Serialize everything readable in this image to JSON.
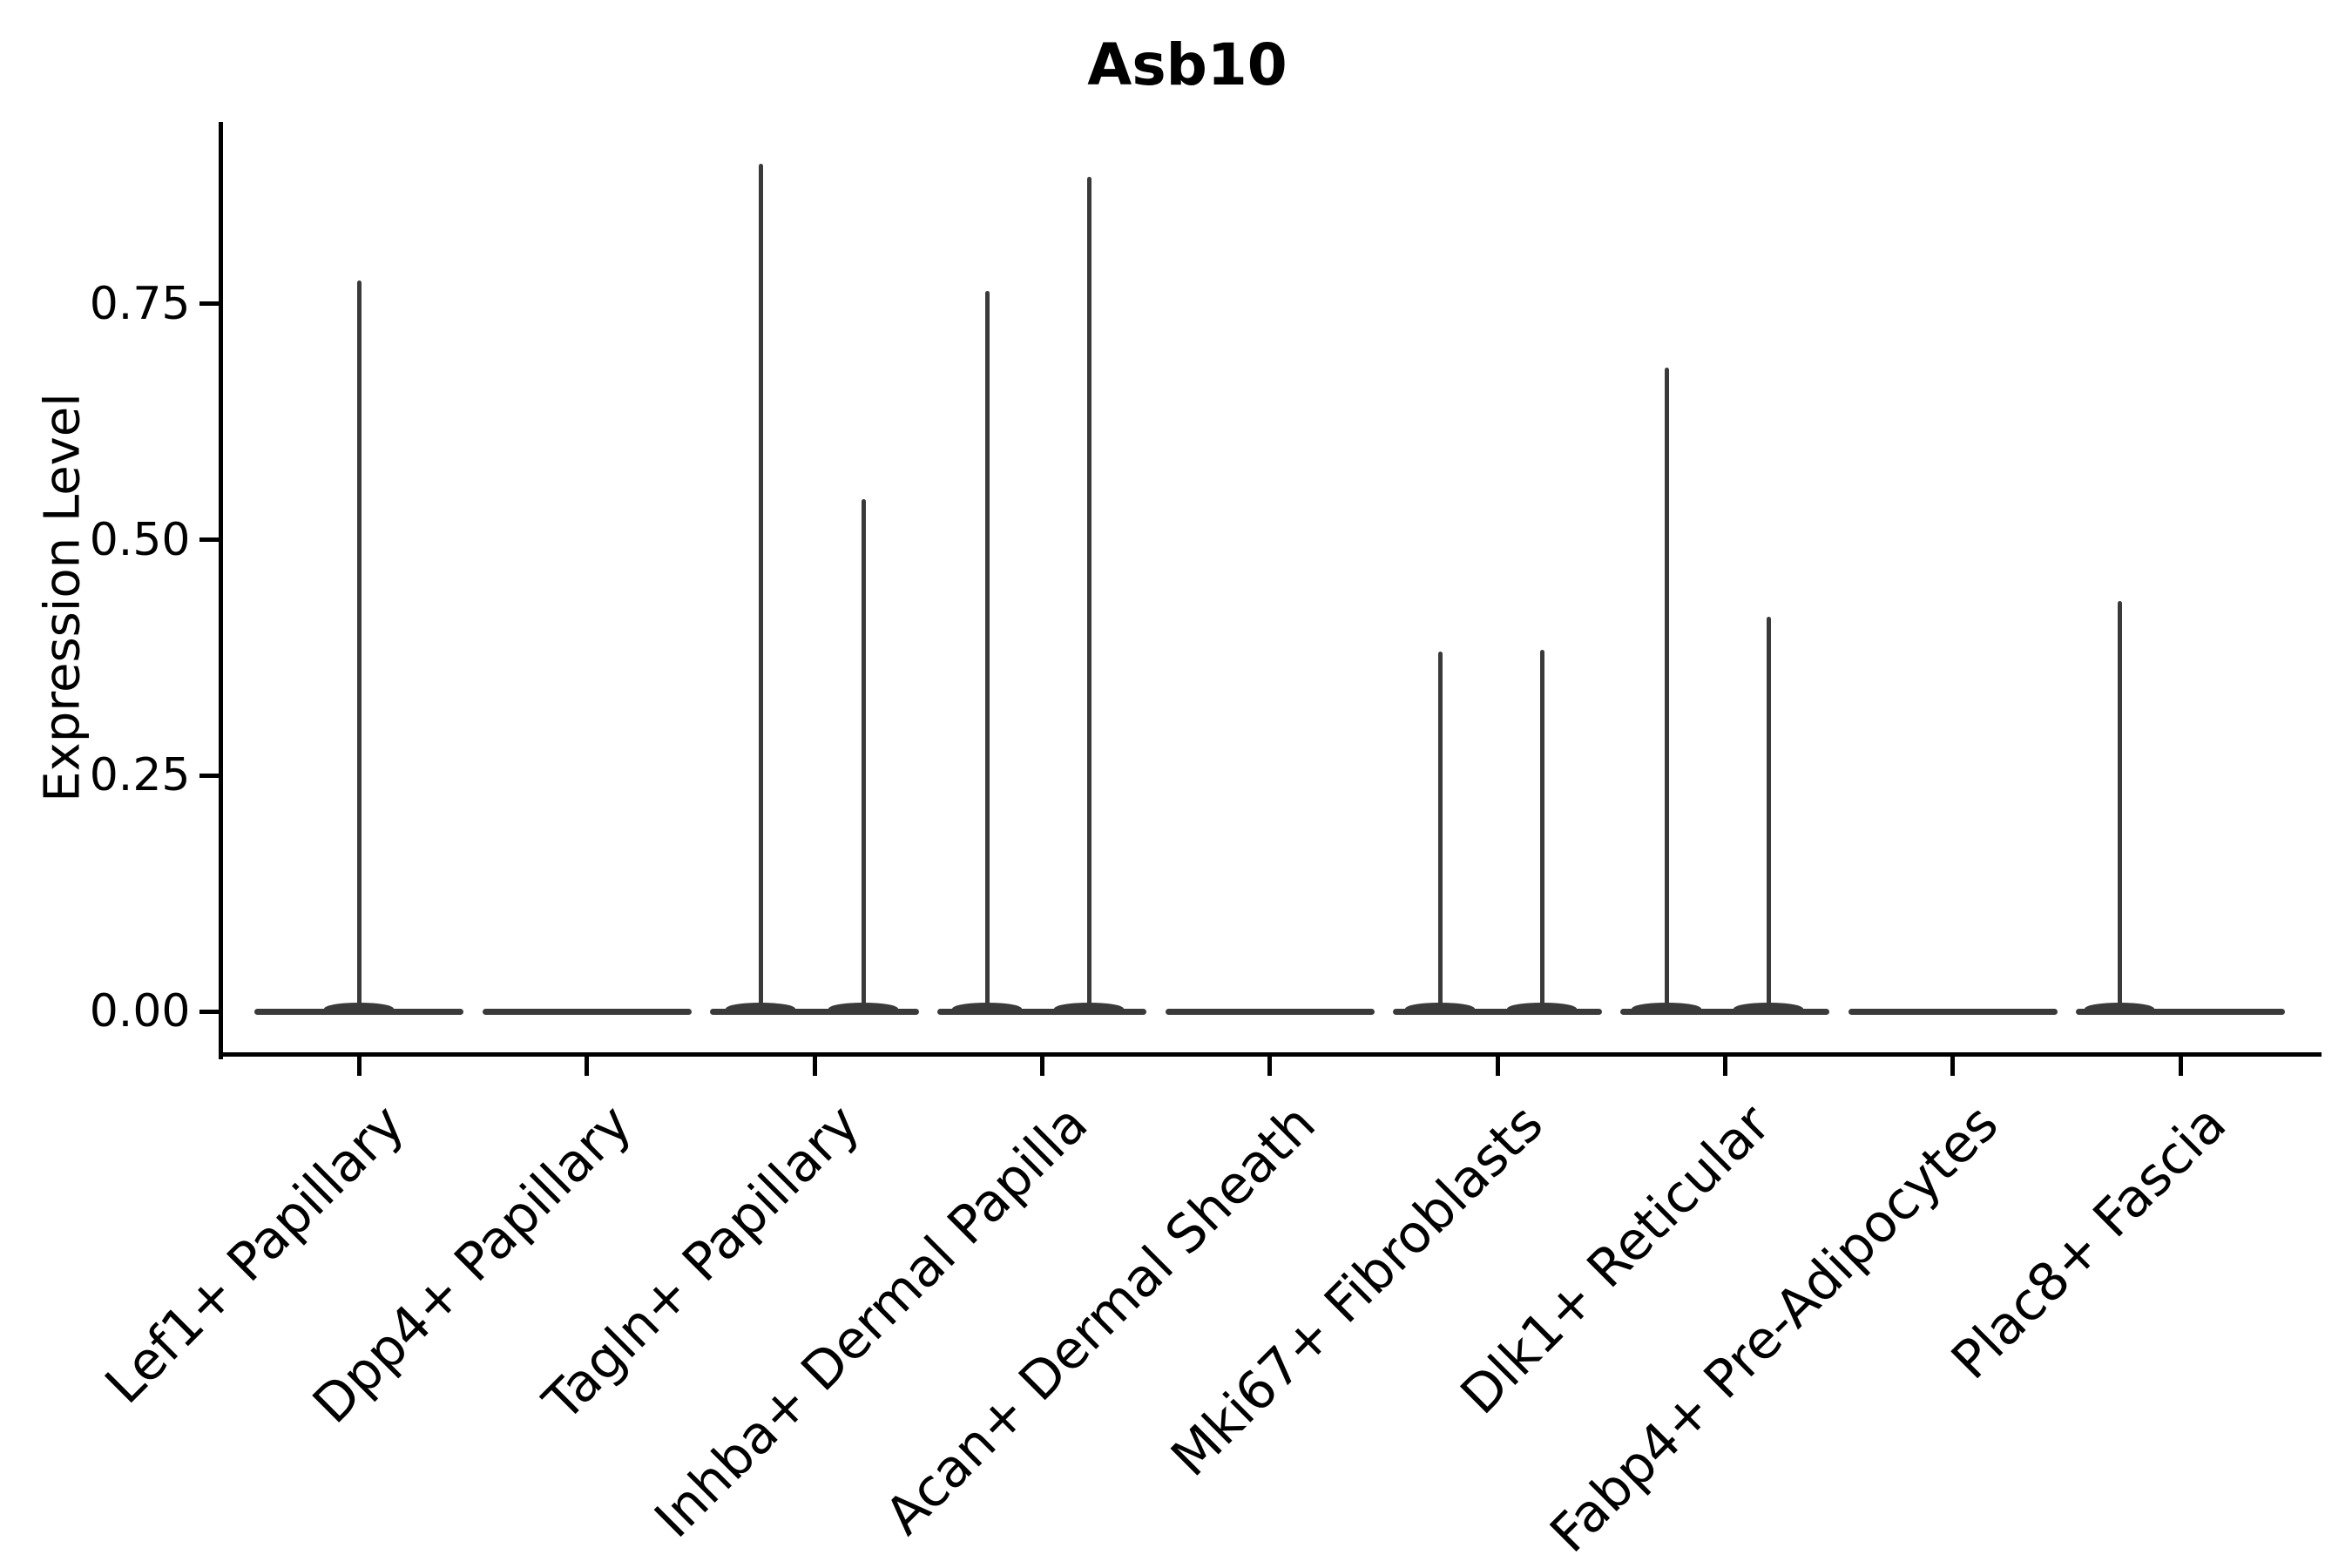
{
  "figure": {
    "title": "Asb10"
  },
  "y_axis": {
    "label": "Expression Level"
  },
  "chart_data": {
    "type": "violin",
    "title": "Asb10",
    "xlabel": "",
    "ylabel": "Expression Level",
    "legend": "none",
    "grid": false,
    "ylim": [
      -0.045,
      0.943
    ],
    "ytick_values": [
      0.0,
      0.25,
      0.5,
      0.75
    ],
    "ytick_labels": [
      "0.00",
      "0.25",
      "0.50",
      "0.75"
    ],
    "categories": [
      "Lef1+ Papillary",
      "Dpp4+ Papillary",
      "Tagln+ Papillary",
      "Inhba+ Dermal Papilla",
      "Acan+ Dermal Sheath",
      "Mki67+ Fibroblasts",
      "Dlk1+ Reticular",
      "Fabp4+ Pre-Adipocytes",
      "Plac8+ Fascia"
    ],
    "description": "Each category shows a violin collapsed to a flat bar at expression 0, with thin vertical density spikes reaching the listed maximum expression values.",
    "series": [
      {
        "name": "Lef1+ Papillary",
        "baseline": 0,
        "spikes": [
          {
            "dx": 0,
            "max": 0.775
          }
        ]
      },
      {
        "name": "Dpp4+ Papillary",
        "baseline": 0,
        "spikes": []
      },
      {
        "name": "Tagln+ Papillary",
        "baseline": 0,
        "spikes": [
          {
            "dx": -62,
            "max": 0.899
          },
          {
            "dx": 56,
            "max": 0.543
          }
        ]
      },
      {
        "name": "Inhba+ Dermal Papilla",
        "baseline": 0,
        "spikes": [
          {
            "dx": -63,
            "max": 0.764
          },
          {
            "dx": 54,
            "max": 0.885
          }
        ]
      },
      {
        "name": "Acan+ Dermal Sheath",
        "baseline": 0,
        "spikes": []
      },
      {
        "name": "Mki67+ Fibroblasts",
        "baseline": 0,
        "spikes": [
          {
            "dx": -66,
            "max": 0.381
          },
          {
            "dx": 51,
            "max": 0.383
          }
        ]
      },
      {
        "name": "Dlk1+ Reticular",
        "baseline": 0,
        "spikes": [
          {
            "dx": -67,
            "max": 0.683
          },
          {
            "dx": 50,
            "max": 0.418
          }
        ]
      },
      {
        "name": "Fabp4+ Pre-Adipocytes",
        "baseline": 0,
        "spikes": []
      },
      {
        "name": "Plac8+ Fascia",
        "baseline": 0,
        "spikes": [
          {
            "dx": -70,
            "max": 0.435
          }
        ]
      }
    ],
    "colors": {
      "violin": "#3a3a3a",
      "axis": "#000000",
      "text": "#000000",
      "background": "#ffffff"
    }
  }
}
